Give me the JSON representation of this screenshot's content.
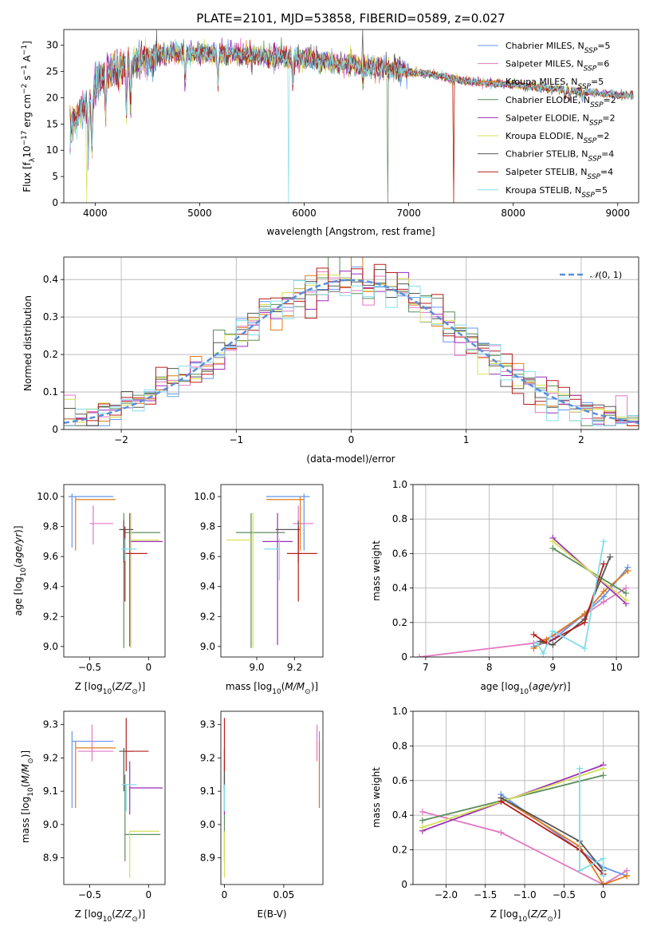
{
  "figure_title": "PLATE=2101, MJD=53858, FIBERID=0589, z=0.027",
  "colors": {
    "chabrier_miles": "#6495ED",
    "salpeter_miles": "#E377C2",
    "kroupa_miles": "#E07B1A",
    "chabrier_elodie": "#5C8C5C",
    "salpeter_elodie": "#9B2DB8",
    "kroupa_elodie": "#D4E157",
    "chabrier_stelib": "#555555",
    "salpeter_stelib": "#B71C1C",
    "kroupa_stelib": "#80DEEA",
    "normal": "#5B8FD9",
    "grid": "#b0b0b0"
  },
  "chart_data": [
    {
      "id": "spectrum",
      "type": "line",
      "title": "PLATE=2101, MJD=53858, FIBERID=0589, z=0.027",
      "xlabel": "wavelength [Angstrom, rest frame]",
      "ylabel": "Flux [f_λ10^-17 erg cm^-2 s^-1 A^-1]",
      "xlim": [
        3700,
        9200
      ],
      "ylim": [
        0,
        33
      ],
      "xticks": [
        4000,
        5000,
        6000,
        7000,
        8000,
        9000
      ],
      "yticks": [
        0,
        5,
        10,
        15,
        20,
        25,
        30
      ],
      "grid": false,
      "legend_position": "top-right",
      "continuum": {
        "x": [
          3760,
          3850,
          3950,
          4050,
          4150,
          4300,
          4500,
          4750,
          5000,
          5300,
          5600,
          6000,
          6400,
          6800,
          7200,
          7600,
          8000,
          8500,
          9000,
          9150
        ],
        "y": [
          14,
          17,
          20,
          24,
          25.5,
          26,
          27.5,
          28.5,
          28.5,
          28.5,
          28,
          27.5,
          26.5,
          25.5,
          24.5,
          23,
          22.5,
          21.5,
          20.5,
          20.5
        ]
      },
      "absorption_lines": [
        {
          "x": 3934,
          "depth": 0.55
        },
        {
          "x": 3969,
          "depth": 0.5
        },
        {
          "x": 4102,
          "depth": 0.3
        },
        {
          "x": 4300,
          "depth": 0.35
        },
        {
          "x": 4340,
          "depth": 0.3
        },
        {
          "x": 4861,
          "depth": 0.2
        },
        {
          "x": 5175,
          "depth": 0.2
        },
        {
          "x": 5890,
          "depth": 0.2
        },
        {
          "x": 6563,
          "depth": 0.12
        },
        {
          "x": 8498,
          "depth": 0.06
        },
        {
          "x": 8542,
          "depth": 0.08
        },
        {
          "x": 8662,
          "depth": 0.06
        }
      ],
      "series": [
        {
          "name": "Chabrier MILES, N_SSP=5",
          "color_key": "chabrier_miles",
          "spike": null
        },
        {
          "name": "Salpeter MILES, N_SSP=6",
          "color_key": "salpeter_miles",
          "spike": null
        },
        {
          "name": "Kroupa MILES, N_SSP=5",
          "color_key": "kroupa_miles",
          "spike": {
            "x": 7430,
            "y": 0
          }
        },
        {
          "name": "Chabrier ELODIE, N_SSP=2",
          "color_key": "chabrier_elodie",
          "spike": {
            "x": 6800,
            "y": 0
          }
        },
        {
          "name": "Salpeter ELODIE, N_SSP=2",
          "color_key": "salpeter_elodie",
          "spike": null
        },
        {
          "name": "Kroupa ELODIE, N_SSP=2",
          "color_key": "kroupa_elodie",
          "spike": {
            "x": 3920,
            "y": 0
          }
        },
        {
          "name": "Chabrier STELIB, N_SSP=4",
          "color_key": "chabrier_stelib",
          "spike": {
            "x": 6560,
            "y": 33
          }
        },
        {
          "name": "Salpeter STELIB, N_SSP=4",
          "color_key": "salpeter_stelib",
          "spike": {
            "x": 7430,
            "y": 0
          }
        },
        {
          "name": "Kroupa STELIB, N_SSP=5",
          "color_key": "kroupa_stelib",
          "spike": {
            "x": 5850,
            "y": 0
          }
        }
      ]
    },
    {
      "id": "residuals",
      "type": "histogram",
      "xlabel": "(data-model)/error",
      "ylabel": "Normed distribution",
      "xlim": [
        -2.5,
        2.5
      ],
      "ylim": [
        0,
        0.46
      ],
      "xticks": [
        -2,
        -1,
        0,
        1,
        2
      ],
      "yticks": [
        0.0,
        0.1,
        0.2,
        0.3,
        0.4
      ],
      "grid": true,
      "legend_position": "top-right",
      "bins": 50,
      "normal_curve": {
        "label": "N(0,1)",
        "mean": 0,
        "sigma": 1
      },
      "series_jitter": [
        0.012,
        -0.01,
        0.02,
        -0.018,
        0.015,
        -0.005,
        0.008,
        -0.014,
        0.01
      ]
    },
    {
      "id": "z_vs_age",
      "type": "errorbar",
      "xlabel": "Z [log10(Z/Z⊙)]",
      "ylabel": "age [log10(age/yr)]",
      "xlim": [
        -0.72,
        0.14
      ],
      "ylim": [
        8.93,
        10.08
      ],
      "xticks": [
        -0.5,
        0.0
      ],
      "yticks": [
        9.0,
        9.2,
        9.4,
        9.6,
        9.8,
        10.0
      ],
      "points": [
        {
          "color_key": "chabrier_miles",
          "x": -0.65,
          "xlo": -0.68,
          "xhi": -0.3,
          "y": 10.0,
          "ylo": 9.66,
          "yhi": 10.02
        },
        {
          "color_key": "salpeter_miles",
          "x": -0.47,
          "xlo": -0.5,
          "xhi": -0.3,
          "y": 9.82,
          "ylo": 9.68,
          "yhi": 9.94
        },
        {
          "color_key": "kroupa_miles",
          "x": -0.62,
          "xlo": -0.62,
          "xhi": -0.28,
          "y": 9.98,
          "ylo": 9.64,
          "yhi": 10.0
        },
        {
          "color_key": "chabrier_elodie",
          "x": -0.21,
          "xlo": -0.21,
          "xhi": 0.1,
          "y": 9.76,
          "ylo": 8.99,
          "yhi": 9.89
        },
        {
          "color_key": "salpeter_elodie",
          "x": -0.16,
          "xlo": -0.16,
          "xhi": 0.12,
          "y": 9.7,
          "ylo": 9.0,
          "yhi": 9.89
        },
        {
          "color_key": "kroupa_elodie",
          "x": -0.15,
          "xlo": -0.15,
          "xhi": 0.09,
          "y": 9.71,
          "ylo": 8.99,
          "yhi": 9.89
        },
        {
          "color_key": "chabrier_stelib",
          "x": -0.21,
          "xlo": -0.25,
          "xhi": -0.13,
          "y": 9.78,
          "ylo": 9.56,
          "yhi": 9.84
        },
        {
          "color_key": "salpeter_stelib",
          "x": -0.2,
          "xlo": -0.2,
          "xhi": -0.01,
          "y": 9.62,
          "ylo": 9.3,
          "yhi": 9.8
        },
        {
          "color_key": "kroupa_stelib",
          "x": -0.2,
          "xlo": -0.23,
          "xhi": -0.1,
          "y": 9.65,
          "ylo": 9.57,
          "yhi": 9.72
        }
      ]
    },
    {
      "id": "mass_vs_age",
      "type": "errorbar",
      "xlabel": "mass [log10(M/M⊙)]",
      "ylabel": "",
      "xlim": [
        8.81,
        9.35
      ],
      "ylim": [
        8.93,
        10.08
      ],
      "xticks": [
        9.0,
        9.2
      ],
      "yticks": [
        9.0,
        9.2,
        9.4,
        9.6,
        9.8,
        10.0
      ],
      "points": [
        {
          "color_key": "chabrier_miles",
          "x": 9.25,
          "xlo": 9.05,
          "xhi": 9.28,
          "y": 10.0,
          "ylo": 9.64,
          "yhi": 10.02
        },
        {
          "color_key": "salpeter_miles",
          "x": 9.22,
          "xlo": 9.19,
          "xhi": 9.3,
          "y": 9.82,
          "ylo": 9.68,
          "yhi": 9.94
        },
        {
          "color_key": "kroupa_miles",
          "x": 9.23,
          "xlo": 9.05,
          "xhi": 9.25,
          "y": 9.98,
          "ylo": 9.64,
          "yhi": 10.0
        },
        {
          "color_key": "chabrier_elodie",
          "x": 8.97,
          "xlo": 8.89,
          "xhi": 9.15,
          "y": 9.76,
          "ylo": 8.99,
          "yhi": 9.89
        },
        {
          "color_key": "salpeter_elodie",
          "x": 9.11,
          "xlo": 9.03,
          "xhi": 9.19,
          "y": 9.7,
          "ylo": 9.01,
          "yhi": 9.89
        },
        {
          "color_key": "kroupa_elodie",
          "x": 8.98,
          "xlo": 8.84,
          "xhi": 8.98,
          "y": 9.71,
          "ylo": 8.99,
          "yhi": 9.89
        },
        {
          "color_key": "chabrier_stelib",
          "x": 9.22,
          "xlo": 9.1,
          "xhi": 9.23,
          "y": 9.78,
          "ylo": 9.56,
          "yhi": 9.84
        },
        {
          "color_key": "salpeter_stelib",
          "x": 9.22,
          "xlo": 9.16,
          "xhi": 9.32,
          "y": 9.62,
          "ylo": 9.3,
          "yhi": 9.8
        },
        {
          "color_key": "kroupa_stelib",
          "x": 9.12,
          "xlo": 9.04,
          "xhi": 9.12,
          "y": 9.65,
          "ylo": 9.44,
          "yhi": 9.72
        }
      ]
    },
    {
      "id": "weight_vs_age",
      "type": "line",
      "xlabel": "age [log10(age/yr)]",
      "ylabel": "mass weight",
      "xlim": [
        6.8,
        10.35
      ],
      "ylim": [
        0,
        1
      ],
      "xticks": [
        7,
        8,
        9,
        10
      ],
      "yticks": [
        0.0,
        0.2,
        0.4,
        0.6,
        0.8,
        1.0
      ],
      "grid": true,
      "series": [
        {
          "color_key": "salpeter_miles",
          "x": [
            6.9,
            8.7,
            9.0,
            9.8,
            10.15
          ],
          "y": [
            0.0,
            0.08,
            0.12,
            0.32,
            0.4
          ]
        },
        {
          "color_key": "chabrier_miles",
          "x": [
            8.7,
            9.0,
            9.5,
            9.8,
            10.18
          ],
          "y": [
            0.06,
            0.1,
            0.25,
            0.35,
            0.52
          ]
        },
        {
          "color_key": "kroupa_miles",
          "x": [
            8.7,
            8.9,
            9.5,
            9.8,
            10.18
          ],
          "y": [
            0.05,
            0.1,
            0.25,
            0.38,
            0.5
          ]
        },
        {
          "color_key": "salpeter_elodie",
          "x": [
            9.0,
            10.15
          ],
          "y": [
            0.69,
            0.31
          ]
        },
        {
          "color_key": "chabrier_elodie",
          "x": [
            9.0,
            10.15
          ],
          "y": [
            0.63,
            0.37
          ]
        },
        {
          "color_key": "kroupa_elodie",
          "x": [
            9.0,
            10.15
          ],
          "y": [
            0.67,
            0.33
          ]
        },
        {
          "color_key": "chabrier_stelib",
          "x": [
            8.8,
            9.0,
            9.5,
            9.9
          ],
          "y": [
            0.09,
            0.07,
            0.22,
            0.58
          ]
        },
        {
          "color_key": "salpeter_stelib",
          "x": [
            8.7,
            8.9,
            9.5,
            9.8
          ],
          "y": [
            0.13,
            0.08,
            0.2,
            0.54
          ]
        },
        {
          "color_key": "kroupa_stelib",
          "x": [
            8.75,
            8.85,
            9.0,
            9.5,
            9.8
          ],
          "y": [
            0.08,
            0.02,
            0.15,
            0.05,
            0.67
          ]
        }
      ]
    },
    {
      "id": "z_vs_mass",
      "type": "errorbar",
      "xlabel": "Z [log10(Z/Z⊙)]",
      "ylabel": "mass [log10(M/M⊙)]",
      "xlim": [
        -0.72,
        0.14
      ],
      "ylim": [
        8.82,
        9.34
      ],
      "xticks": [
        -0.5,
        0.0
      ],
      "yticks": [
        8.9,
        9.0,
        9.1,
        9.2,
        9.3
      ],
      "points": [
        {
          "color_key": "chabrier_miles",
          "x": -0.65,
          "xlo": -0.65,
          "xhi": -0.3,
          "y": 9.25,
          "ylo": 9.05,
          "yhi": 9.28
        },
        {
          "color_key": "salpeter_miles",
          "x": -0.48,
          "xlo": -0.6,
          "xhi": -0.3,
          "y": 9.22,
          "ylo": 9.19,
          "yhi": 9.3
        },
        {
          "color_key": "kroupa_miles",
          "x": -0.62,
          "xlo": -0.62,
          "xhi": -0.28,
          "y": 9.23,
          "ylo": 9.05,
          "yhi": 9.25
        },
        {
          "color_key": "chabrier_elodie",
          "x": -0.2,
          "xlo": -0.2,
          "xhi": 0.1,
          "y": 8.97,
          "ylo": 8.89,
          "yhi": 9.15
        },
        {
          "color_key": "salpeter_elodie",
          "x": -0.16,
          "xlo": -0.16,
          "xhi": 0.12,
          "y": 9.11,
          "ylo": 9.03,
          "yhi": 9.19
        },
        {
          "color_key": "kroupa_elodie",
          "x": -0.16,
          "xlo": -0.16,
          "xhi": 0.09,
          "y": 8.98,
          "ylo": 8.84,
          "yhi": 8.98
        },
        {
          "color_key": "chabrier_stelib",
          "x": -0.21,
          "xlo": -0.25,
          "xhi": -0.13,
          "y": 9.22,
          "ylo": 9.1,
          "yhi": 9.23
        },
        {
          "color_key": "salpeter_stelib",
          "x": -0.19,
          "xlo": -0.19,
          "xhi": 0.0,
          "y": 9.22,
          "ylo": 9.16,
          "yhi": 9.32
        },
        {
          "color_key": "kroupa_stelib",
          "x": -0.19,
          "xlo": -0.23,
          "xhi": -0.1,
          "y": 9.12,
          "ylo": 9.04,
          "yhi": 9.12
        }
      ]
    },
    {
      "id": "ebv_vs_mass",
      "type": "errorbar",
      "xlabel": "E(B-V)",
      "ylabel": "",
      "xlim": [
        -0.003,
        0.083
      ],
      "ylim": [
        8.82,
        9.34
      ],
      "xticks": [
        0.0,
        0.05
      ],
      "yticks": [
        8.9,
        9.0,
        9.1,
        9.2,
        9.3
      ],
      "points": [
        {
          "color_key": "chabrier_miles",
          "x": 0.08,
          "xlo": 0.08,
          "xhi": 0.08,
          "y": 9.25,
          "ylo": 9.05,
          "yhi": 9.28
        },
        {
          "color_key": "salpeter_miles",
          "x": 0.078,
          "xlo": 0.078,
          "xhi": 0.078,
          "y": 9.22,
          "ylo": 9.19,
          "yhi": 9.3
        },
        {
          "color_key": "kroupa_miles",
          "x": 0.08,
          "xlo": 0.08,
          "xhi": 0.08,
          "y": 9.23,
          "ylo": 9.05,
          "yhi": 9.25
        },
        {
          "color_key": "chabrier_elodie",
          "x": 0.0,
          "xlo": 0.0,
          "xhi": 0.0,
          "y": 8.97,
          "ylo": 8.89,
          "yhi": 9.15
        },
        {
          "color_key": "salpeter_elodie",
          "x": 0.0,
          "xlo": 0.0,
          "xhi": 0.0,
          "y": 9.11,
          "ylo": 9.03,
          "yhi": 9.19
        },
        {
          "color_key": "kroupa_elodie",
          "x": 0.0,
          "xlo": 0.0,
          "xhi": 0.0,
          "y": 8.98,
          "ylo": 8.84,
          "yhi": 8.98
        },
        {
          "color_key": "chabrier_stelib",
          "x": 0.0,
          "xlo": 0.0,
          "xhi": 0.0,
          "y": 9.22,
          "ylo": 9.1,
          "yhi": 9.23
        },
        {
          "color_key": "salpeter_stelib",
          "x": 0.0,
          "xlo": 0.0,
          "xhi": 0.0,
          "y": 9.22,
          "ylo": 9.16,
          "yhi": 9.32
        },
        {
          "color_key": "kroupa_stelib",
          "x": 0.0,
          "xlo": 0.0,
          "xhi": 0.0,
          "y": 9.12,
          "ylo": 9.04,
          "yhi": 9.12
        }
      ]
    },
    {
      "id": "weight_vs_z",
      "type": "line",
      "xlabel": "Z [log10(Z/Z⊙)]",
      "ylabel": "mass weight",
      "xlim": [
        -2.42,
        0.45
      ],
      "ylim": [
        0,
        1
      ],
      "xticks": [
        -2.0,
        -1.5,
        -1.0,
        -0.5,
        0.0
      ],
      "yticks": [
        0.0,
        0.2,
        0.4,
        0.6,
        0.8,
        1.0
      ],
      "grid": true,
      "series": [
        {
          "color_key": "salpeter_miles",
          "x": [
            -2.3,
            -1.3,
            0.0,
            0.3
          ],
          "y": [
            0.42,
            0.3,
            0.0,
            0.08
          ]
        },
        {
          "color_key": "chabrier_miles",
          "x": [
            -1.3,
            -0.3,
            0.0,
            0.3
          ],
          "y": [
            0.52,
            0.2,
            0.1,
            0.05
          ]
        },
        {
          "color_key": "kroupa_miles",
          "x": [
            -1.3,
            -0.3,
            0.0,
            0.3
          ],
          "y": [
            0.5,
            0.22,
            0.0,
            0.05
          ]
        },
        {
          "color_key": "salpeter_elodie",
          "x": [
            -2.3,
            0.0
          ],
          "y": [
            0.31,
            0.69
          ]
        },
        {
          "color_key": "chabrier_elodie",
          "x": [
            -2.3,
            0.0
          ],
          "y": [
            0.37,
            0.63
          ]
        },
        {
          "color_key": "kroupa_elodie",
          "x": [
            -2.3,
            0.0
          ],
          "y": [
            0.33,
            0.67
          ]
        },
        {
          "color_key": "chabrier_stelib",
          "x": [
            -1.3,
            -0.3,
            0.0
          ],
          "y": [
            0.5,
            0.25,
            0.08
          ]
        },
        {
          "color_key": "salpeter_stelib",
          "x": [
            -1.3,
            -0.3,
            0.0
          ],
          "y": [
            0.48,
            0.2,
            0.06
          ]
        },
        {
          "color_key": "kroupa_stelib",
          "x": [
            -0.3,
            -0.3,
            0.0,
            0.0
          ],
          "y": [
            0.67,
            0.08,
            0.15,
            0.05
          ]
        }
      ]
    }
  ]
}
